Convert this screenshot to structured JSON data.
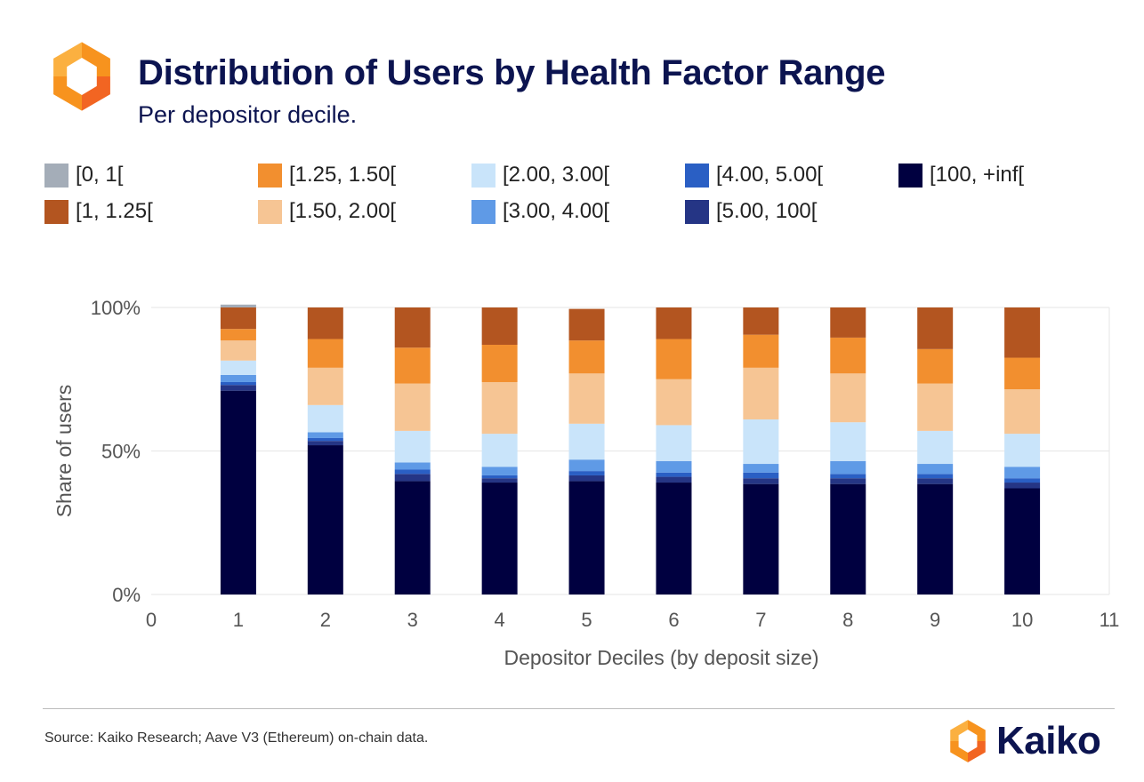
{
  "header": {
    "title": "Distribution of Users by Health Factor Range",
    "subtitle": "Per depositor decile."
  },
  "footer": {
    "source": "Source: Kaiko Research; Aave V3 (Ethereum) on-chain data.",
    "brand": "Kaiko",
    "logo_icon": "kaiko-logo-icon"
  },
  "colors": {
    "gridline": "#e6e6e6",
    "axis_text": "#555555",
    "logo_orange": "#f7931e",
    "logo_dark_orange": "#f26522",
    "brand_navy": "#0c1450"
  },
  "chart_data": {
    "type": "bar",
    "stacked": true,
    "xlabel": "Depositor Deciles (by deposit size)",
    "ylabel": "Share of users",
    "xlim": [
      0,
      11
    ],
    "xticks": [
      "0",
      "1",
      "2",
      "3",
      "4",
      "5",
      "6",
      "7",
      "8",
      "9",
      "10",
      "11"
    ],
    "ylim": [
      0,
      100
    ],
    "yticks": [
      "0%",
      "50%",
      "100%"
    ],
    "grid": true,
    "legend_position": "top",
    "categories": [
      1,
      2,
      3,
      4,
      5,
      6,
      7,
      8,
      9,
      10
    ],
    "series": [
      {
        "name": "[100, +inf[",
        "color": "#000040",
        "values": [
          71,
          52,
          39.5,
          39,
          39.5,
          39,
          38.5,
          38.5,
          38.5,
          37
        ]
      },
      {
        "name": "[5.00, 100[",
        "color": "#253585",
        "values": [
          2,
          1.5,
          2.5,
          1.5,
          2,
          2,
          2,
          2,
          2,
          2
        ]
      },
      {
        "name": "[4.00, 5.00[",
        "color": "#2a5fc4",
        "values": [
          1,
          1,
          1.5,
          1,
          1.5,
          1.5,
          2,
          1.5,
          1.5,
          1.5
        ]
      },
      {
        "name": "[3.00, 4.00[",
        "color": "#5f9ae6",
        "values": [
          2.5,
          2,
          2.5,
          3,
          4,
          4,
          3,
          4.5,
          3.5,
          4
        ]
      },
      {
        "name": "[2.00, 3.00[",
        "color": "#c9e4fa",
        "values": [
          5,
          9.5,
          11,
          11.5,
          12.5,
          12.5,
          15.5,
          13.5,
          11.5,
          11.5
        ]
      },
      {
        "name": "[1.50, 2.00[",
        "color": "#f6c594",
        "values": [
          7,
          13,
          16.5,
          18,
          17.5,
          16,
          18,
          17,
          16.5,
          15.5
        ]
      },
      {
        "name": "[1.25, 1.50[",
        "color": "#f28f2f",
        "values": [
          4,
          10,
          12.5,
          13,
          11.5,
          14,
          11.5,
          12.5,
          12,
          11
        ]
      },
      {
        "name": "[1, 1.25[",
        "color": "#b35520",
        "values": [
          7.5,
          11,
          14,
          13,
          11,
          11,
          9.5,
          10.5,
          14.5,
          17.5
        ]
      },
      {
        "name": "[0, 1[",
        "color": "#a4adb8",
        "values": [
          1,
          0,
          0,
          0,
          0,
          0,
          0,
          0,
          0,
          0
        ]
      }
    ],
    "legend_order": [
      "[0, 1[",
      "[1.25, 1.50[",
      "[2.00, 3.00[",
      "[4.00, 5.00[",
      "[100, +inf[",
      "[1, 1.25[",
      "[1.50, 2.00[",
      "[3.00, 4.00[",
      "[5.00, 100["
    ]
  }
}
